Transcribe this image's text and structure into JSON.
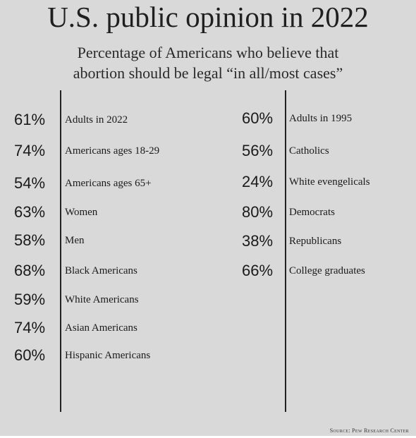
{
  "header": {
    "title": "U.S. public opinion in 2022",
    "subtitle_line1": "Percentage of Americans who believe that",
    "subtitle_line2": "abortion should be legal “in all/most cases”"
  },
  "source": "Source: Pew Research Center",
  "chart_data": {
    "type": "table",
    "title": "U.S. public opinion in 2022",
    "subtitle": "Percentage of Americans who believe that abortion should be legal “in all/most cases”",
    "columns": [
      {
        "rows": [
          {
            "value": "61%",
            "label": "Adults in 2022"
          },
          {
            "value": "74%",
            "label": "Americans ages 18-29"
          },
          {
            "value": "54%",
            "label": "Americans ages 65+"
          },
          {
            "value": "63%",
            "label": "Women"
          },
          {
            "value": "58%",
            "label": "Men"
          },
          {
            "value": "68%",
            "label": "Black Americans"
          },
          {
            "value": "59%",
            "label": "White Americans"
          },
          {
            "value": "74%",
            "label": "Asian Americans"
          },
          {
            "value": "60%",
            "label": "Hispanic Americans"
          }
        ]
      },
      {
        "rows": [
          {
            "value": "60%",
            "label": "Adults in 1995"
          },
          {
            "value": "56%",
            "label": "Catholics"
          },
          {
            "value": "24%",
            "label": "White evengelicals"
          },
          {
            "value": "80%",
            "label": "Democrats"
          },
          {
            "value": "38%",
            "label": "Republicans"
          },
          {
            "value": "66%",
            "label": "College graduates"
          }
        ]
      }
    ]
  }
}
